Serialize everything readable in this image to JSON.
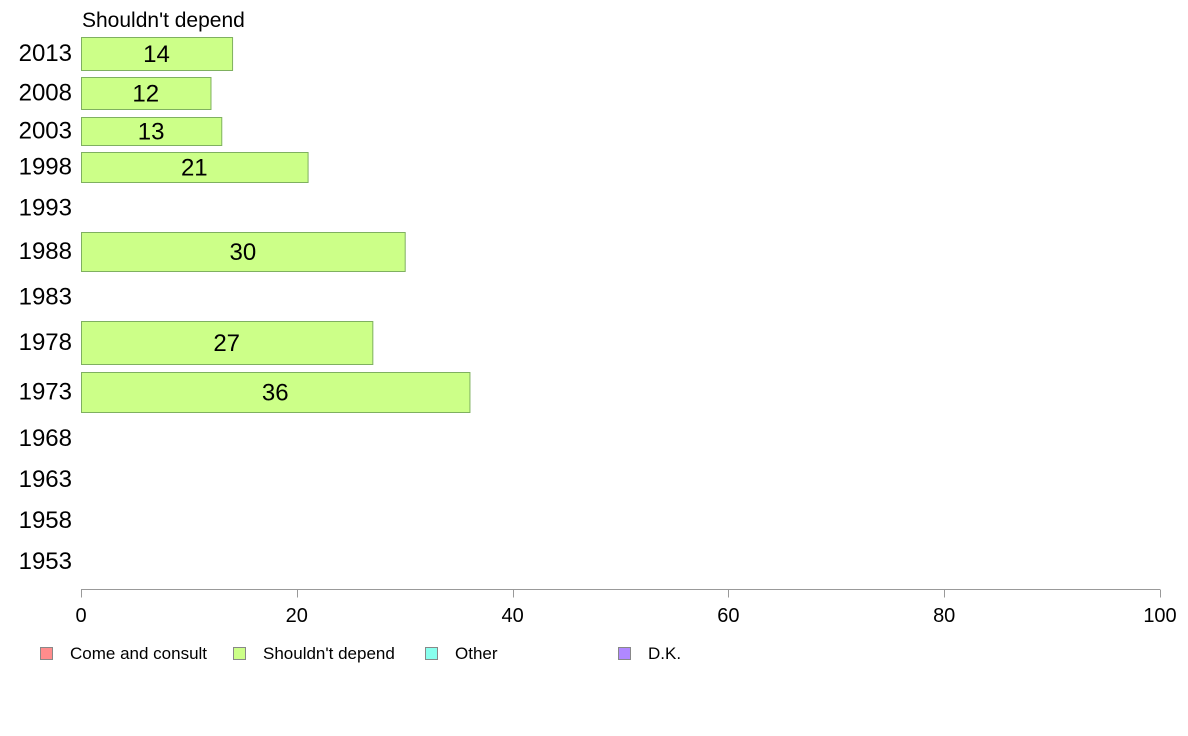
{
  "chart_data": {
    "type": "bar",
    "orientation": "horizontal",
    "panel_title": "Shouldn't depend",
    "categories": [
      "2013",
      "2008",
      "2003",
      "1998",
      "1993",
      "1988",
      "1983",
      "1978",
      "1973",
      "1968",
      "1963",
      "1958",
      "1953"
    ],
    "series": [
      {
        "name": "Shouldn't depend",
        "color": "#CCFF88",
        "values": [
          14,
          12,
          13,
          21,
          null,
          30,
          null,
          27,
          36,
          null,
          null,
          null,
          null
        ]
      }
    ],
    "xlim": [
      0,
      100
    ],
    "xticks": [
      0,
      20,
      40,
      60,
      80,
      100
    ],
    "grid": false,
    "legend": {
      "placement": "bottom",
      "items": [
        {
          "label": "Come and consult",
          "color": "#FF8C8C"
        },
        {
          "label": "Shouldn't depend",
          "color": "#CCFF88"
        },
        {
          "label": "Other",
          "color": "#88FFEE"
        },
        {
          "label": "D.K.",
          "color": "#B088FF"
        }
      ]
    }
  }
}
